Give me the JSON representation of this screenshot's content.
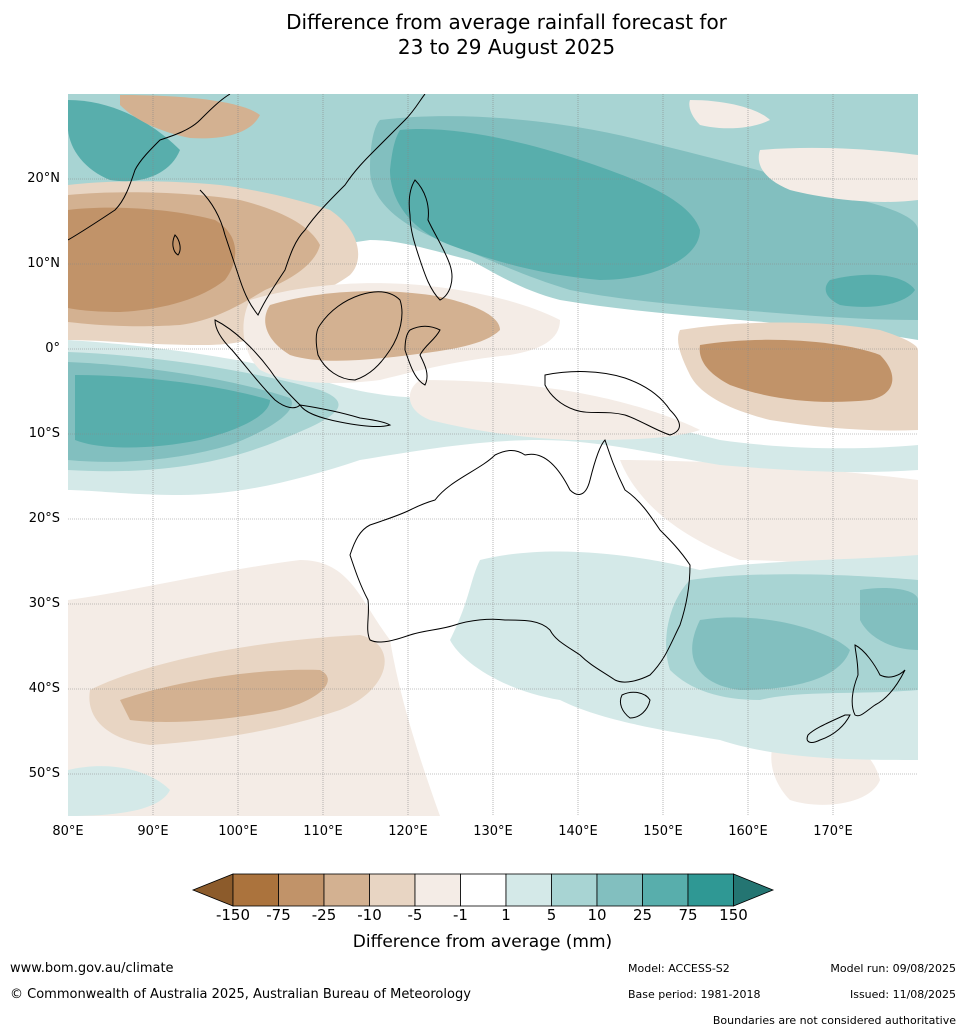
{
  "title": {
    "line1": "Difference from average rainfall forecast for",
    "line2": "23 to 29 August 2025"
  },
  "map": {
    "region": "Australia and surrounding region",
    "latitude_labels": [
      "20°N",
      "10°N",
      "0°",
      "10°S",
      "20°S",
      "30°S",
      "40°S",
      "50°S"
    ],
    "longitude_labels": [
      "80°E",
      "90°E",
      "100°E",
      "110°E",
      "120°E",
      "130°E",
      "140°E",
      "150°E",
      "160°E",
      "170°E"
    ]
  },
  "colorbar": {
    "title": "Difference from average (mm)",
    "ticks": [
      "-150",
      "-75",
      "-25",
      "-10",
      "-5",
      "-1",
      "1",
      "5",
      "10",
      "25",
      "75",
      "150"
    ],
    "colors": {
      "below_min": "#8c5b2b",
      "b_150_75": "#ab733d",
      "b_75_25": "#c19369",
      "b_25_10": "#d3b191",
      "b_10_5": "#e8d5c3",
      "b_5_1": "#f4ece6",
      "b_1_1": "#ffffff",
      "b_1_5": "#d4e9e8",
      "b_5_10": "#a8d4d3",
      "b_10_25": "#82bfbf",
      "b_25_75": "#58aeac",
      "b_75_150": "#2f9894",
      "above_max": "#247572"
    }
  },
  "footer": {
    "url": "www.bom.gov.au/climate",
    "copyright": "© Commonwealth of Australia 2025, Australian Bureau of Meteorology",
    "model": "Model: ACCESS-S2",
    "model_run": "Model run: 09/08/2025",
    "base_period": "Base period: 1981-2018",
    "issued": "Issued: 11/08/2025",
    "disclaimer": "Boundaries are not considered authoritative"
  }
}
